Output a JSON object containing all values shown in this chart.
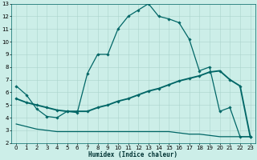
{
  "xlabel": "Humidex (Indice chaleur)",
  "xlim": [
    -0.5,
    23.5
  ],
  "ylim": [
    2,
    13
  ],
  "xticks": [
    0,
    1,
    2,
    3,
    4,
    5,
    6,
    7,
    8,
    9,
    10,
    11,
    12,
    13,
    14,
    15,
    16,
    17,
    18,
    19,
    20,
    21,
    22,
    23
  ],
  "yticks": [
    2,
    3,
    4,
    5,
    6,
    7,
    8,
    9,
    10,
    11,
    12,
    13
  ],
  "bg_color": "#cceee8",
  "line_color": "#006666",
  "grid_color": "#aad4cc",
  "line1_x": [
    0,
    1,
    2,
    3,
    4,
    5,
    6,
    7,
    8,
    9,
    10,
    11,
    12,
    13,
    14,
    15,
    16,
    17,
    18,
    19,
    20,
    21,
    22,
    23
  ],
  "line1_y": [
    6.5,
    5.8,
    4.7,
    4.1,
    4.0,
    4.5,
    4.4,
    7.5,
    9.0,
    9.0,
    11.0,
    12.0,
    12.5,
    13.0,
    12.0,
    11.8,
    11.5,
    10.2,
    7.7,
    8.0,
    4.5,
    4.8,
    2.5,
    2.5
  ],
  "line2_x": [
    0,
    1,
    2,
    3,
    4,
    5,
    6,
    7,
    8,
    9,
    10,
    11,
    12,
    13,
    14,
    15,
    16,
    17,
    18,
    19,
    20,
    21,
    22,
    23
  ],
  "line2_y": [
    5.5,
    5.2,
    5.0,
    4.8,
    4.6,
    4.5,
    4.5,
    4.5,
    4.8,
    5.0,
    5.3,
    5.5,
    5.8,
    6.1,
    6.3,
    6.6,
    6.9,
    7.1,
    7.3,
    7.6,
    7.7,
    7.0,
    6.5,
    2.5
  ],
  "line3_x": [
    0,
    1,
    2,
    3,
    4,
    5,
    6,
    7,
    8,
    9,
    10,
    11,
    12,
    13,
    14,
    15,
    16,
    17,
    18,
    19,
    20,
    21,
    22,
    23
  ],
  "line3_y": [
    3.5,
    3.3,
    3.1,
    3.0,
    2.9,
    2.9,
    2.9,
    2.9,
    2.9,
    2.9,
    2.9,
    2.9,
    2.9,
    2.9,
    2.9,
    2.9,
    2.8,
    2.7,
    2.7,
    2.6,
    2.5,
    2.5,
    2.5,
    2.5
  ]
}
